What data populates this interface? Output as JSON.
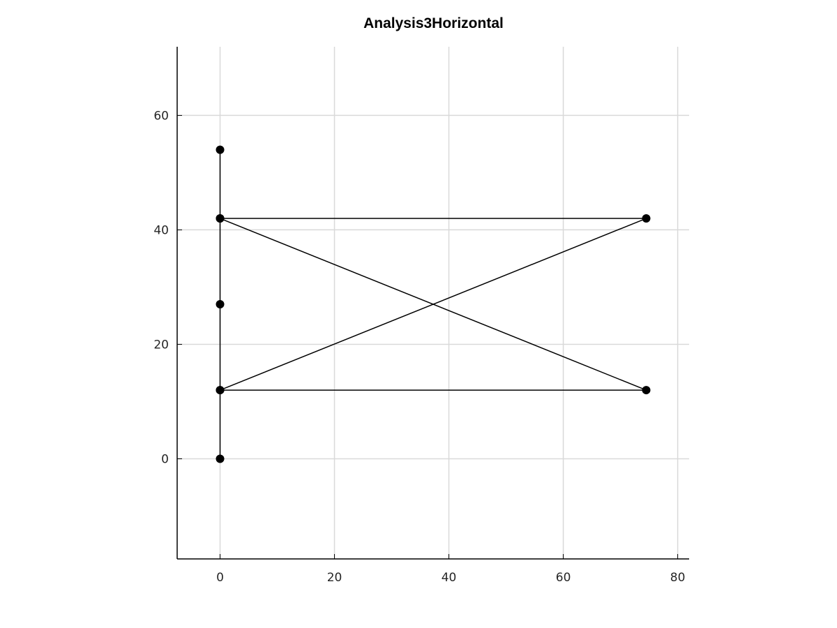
{
  "chart_data": {
    "type": "line",
    "title": "Analysis3Horizontal",
    "xlabel": "",
    "ylabel": "",
    "xlim": [
      -7.5,
      82
    ],
    "ylim": [
      -17.5,
      72
    ],
    "x_ticks": [
      0,
      20,
      40,
      60,
      80
    ],
    "y_ticks": [
      0,
      20,
      40,
      60
    ],
    "grid": true,
    "line_color": "#000000",
    "marker_color": "#000000",
    "grid_color": "#d9d9d9",
    "axis_color": "#000000",
    "series": [
      {
        "points": [
          {
            "x": 0,
            "y": 54
          },
          {
            "x": 0,
            "y": 42
          },
          {
            "x": 74.5,
            "y": 42
          },
          {
            "x": 0,
            "y": 12
          },
          {
            "x": 0,
            "y": 27
          },
          {
            "x": 0,
            "y": 42
          },
          {
            "x": 74.5,
            "y": 12
          },
          {
            "x": 0,
            "y": 12
          },
          {
            "x": 0,
            "y": 0
          }
        ]
      }
    ]
  }
}
